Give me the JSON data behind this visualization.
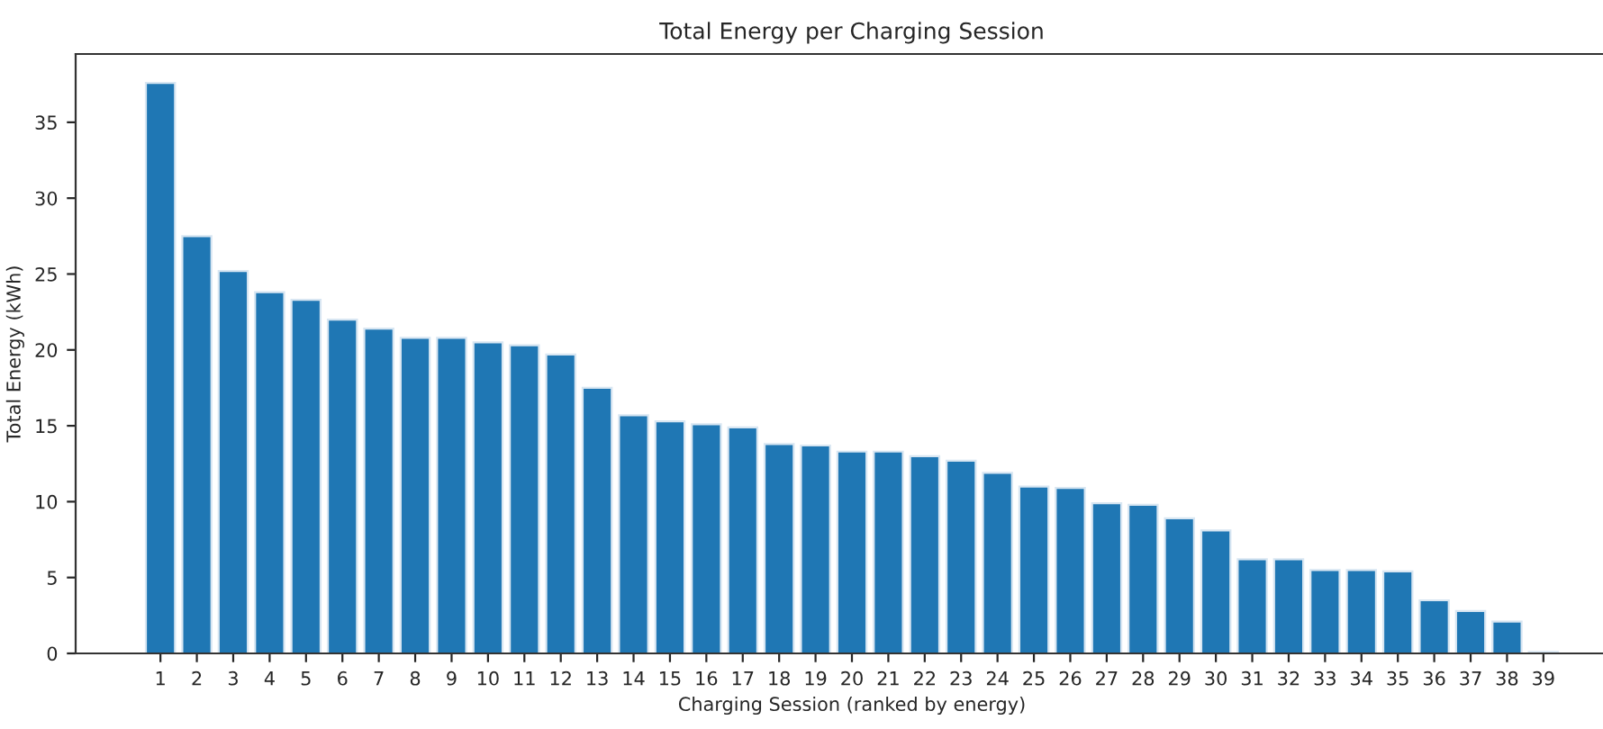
{
  "chart_data": {
    "type": "bar",
    "title": "Total Energy per Charging Session",
    "xlabel": "Charging Session (ranked by energy)",
    "ylabel": "Total Energy (kWh)",
    "categories": [
      "1",
      "2",
      "3",
      "4",
      "5",
      "6",
      "7",
      "8",
      "9",
      "10",
      "11",
      "12",
      "13",
      "14",
      "15",
      "16",
      "17",
      "18",
      "19",
      "20",
      "21",
      "22",
      "23",
      "24",
      "25",
      "26",
      "27",
      "28",
      "29",
      "30",
      "31",
      "32",
      "33",
      "34",
      "35",
      "36",
      "37",
      "38",
      "39"
    ],
    "values": [
      37.6,
      27.5,
      25.2,
      23.8,
      23.3,
      22.0,
      21.4,
      20.8,
      20.8,
      20.5,
      20.3,
      19.7,
      17.5,
      15.7,
      15.3,
      15.1,
      14.9,
      13.8,
      13.7,
      13.3,
      13.3,
      13.0,
      12.7,
      11.9,
      11.0,
      10.9,
      9.9,
      9.8,
      8.9,
      8.1,
      6.2,
      6.2,
      5.5,
      5.5,
      5.4,
      3.5,
      2.8,
      2.1,
      0.1
    ],
    "color": "#1f77b4",
    "ylim": [
      0,
      39.5
    ],
    "yticks": [
      0,
      5,
      10,
      15,
      20,
      25,
      30,
      35
    ],
    "grid": false
  }
}
